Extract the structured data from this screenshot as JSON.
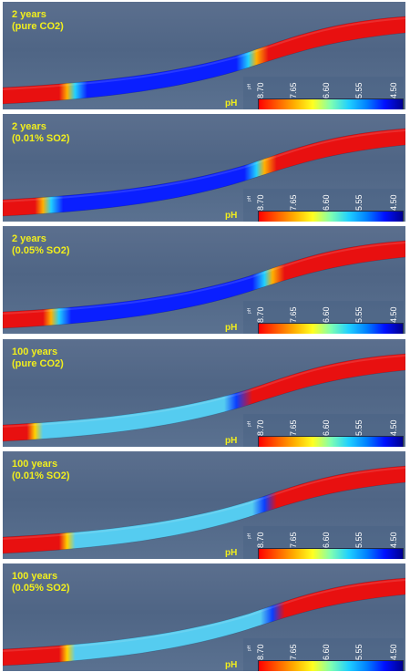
{
  "legend": {
    "title": "pH",
    "small_title": "pH",
    "ticks": [
      "8.70",
      "7.65",
      "6.60",
      "5.55",
      "4.50"
    ],
    "colormap": [
      "#ff0000",
      "#ff5a00",
      "#ffb000",
      "#ffff20",
      "#80ffb0",
      "#20d0ff",
      "#0080ff",
      "#0010ff",
      "#000090"
    ]
  },
  "panels": [
    {
      "caption_line1": "2 years",
      "caption_line2": "(pure CO2)"
    },
    {
      "caption_line1": "2 years",
      "caption_line2": "(0.01% SO2)"
    },
    {
      "caption_line1": "2 years",
      "caption_line2": "(0.05% SO2)"
    },
    {
      "caption_line1": "100 years",
      "caption_line2": "(pure CO2)"
    },
    {
      "caption_line1": "100 years",
      "caption_line2": "(0.01% SO2)"
    },
    {
      "caption_line1": "100 years",
      "caption_line2": "(0.05% SO2)"
    }
  ],
  "colors": {
    "caption": "#f2ef1c",
    "background": "#55698a",
    "acidic_front": "#0a1fff",
    "weak_acid": "#55ccf0",
    "neutral": "#e81010"
  }
}
